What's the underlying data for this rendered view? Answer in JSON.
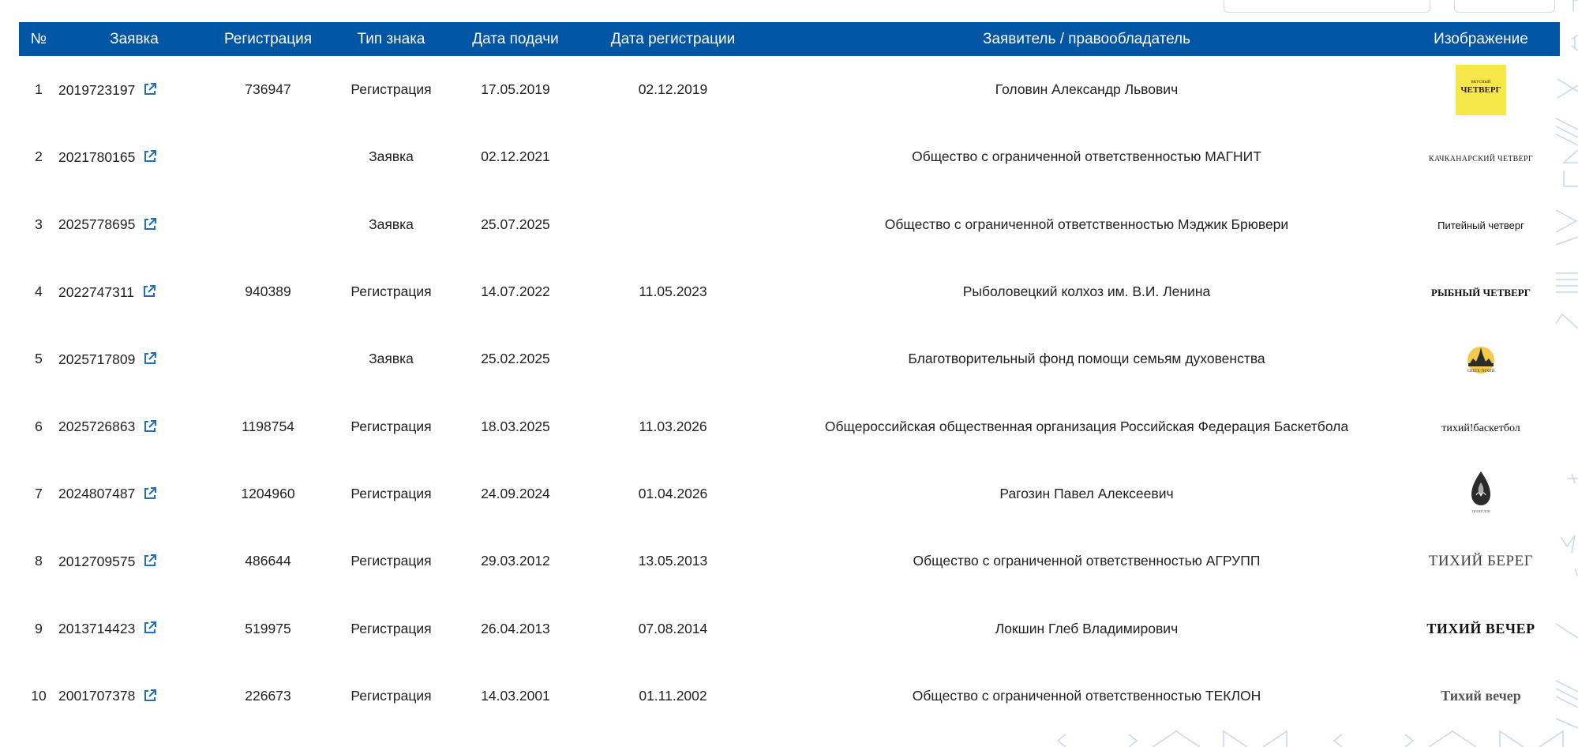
{
  "table": {
    "headers": {
      "num": "№",
      "application": "Заявка",
      "registration": "Регистрация",
      "mark_type": "Тип знака",
      "filing_date": "Дата подачи",
      "registration_date": "Дата регистрации",
      "applicant": "Заявитель / правообладатель",
      "image": "Изображение"
    },
    "rows": [
      {
        "num": "1",
        "application": "2019723197",
        "registration": "736947",
        "type": "Регистрация",
        "filing": "17.05.2019",
        "reg_date": "02.12.2019",
        "applicant": "Головин Александр Львович",
        "logo_text": "ЧЕТВЕРГ",
        "logo_subtext": "ВКУСНЫЙ"
      },
      {
        "num": "2",
        "application": "2021780165",
        "registration": "",
        "type": "Заявка",
        "filing": "02.12.2021",
        "reg_date": "",
        "applicant": "Общество с ограниченной ответственностью МАГНИТ",
        "logo_text": "КАЧКАНАРСКИЙ ЧЕТВЕРГ"
      },
      {
        "num": "3",
        "application": "2025778695",
        "registration": "",
        "type": "Заявка",
        "filing": "25.07.2025",
        "reg_date": "",
        "applicant": "Общество с ограниченной ответственностью Мэджик Брювери",
        "logo_text": "Питейный четверг"
      },
      {
        "num": "4",
        "application": "2022747311",
        "registration": "940389",
        "type": "Регистрация",
        "filing": "14.07.2022",
        "reg_date": "11.05.2023",
        "applicant": "Рыболовецкий колхоз им. В.И. Ленина",
        "logo_text": "РЫБНЫЙ ЧЕТВЕРГ"
      },
      {
        "num": "5",
        "application": "2025717809",
        "registration": "",
        "type": "Заявка",
        "filing": "25.02.2025",
        "reg_date": "",
        "applicant": "Благотворительный фонд помощи семьям духовенства",
        "logo_text": "СВЕТЕ ТИХИЙ"
      },
      {
        "num": "6",
        "application": "2025726863",
        "registration": "1198754",
        "type": "Регистрация",
        "filing": "18.03.2025",
        "reg_date": "11.03.2026",
        "applicant": "Общероссийская общественная организация Российская Федерация Баскетбола",
        "logo_text": "тихий!баскетбол"
      },
      {
        "num": "7",
        "application": "2024807487",
        "registration": "1204960",
        "type": "Регистрация",
        "filing": "24.09.2024",
        "reg_date": "01.04.2026",
        "applicant": "Рагозин Павел Алексеевич",
        "logo_text": "ТИХИЙ ДОН"
      },
      {
        "num": "8",
        "application": "2012709575",
        "registration": "486644",
        "type": "Регистрация",
        "filing": "29.03.2012",
        "reg_date": "13.05.2013",
        "applicant": "Общество с ограниченной ответственностью АГРУПП",
        "logo_text": "ТИХИЙ БЕРЕГ"
      },
      {
        "num": "9",
        "application": "2013714423",
        "registration": "519975",
        "type": "Регистрация",
        "filing": "26.04.2013",
        "reg_date": "07.08.2014",
        "applicant": "Локшин Глеб Владимирович",
        "logo_text": "ТИХИЙ ВЕЧЕР"
      },
      {
        "num": "10",
        "application": "2001707378",
        "registration": "226673",
        "type": "Регистрация",
        "filing": "14.03.2001",
        "reg_date": "01.11.2002",
        "applicant": "Общество с ограниченной ответственностью ТЕКЛОН",
        "logo_text": "Тихий вечер"
      }
    ]
  },
  "colors": {
    "header_bg": "#0055a5",
    "link_icon": "#1f6fbf",
    "decor": "#c9d7ea"
  },
  "icons": {
    "external_link": "external-link-icon"
  }
}
